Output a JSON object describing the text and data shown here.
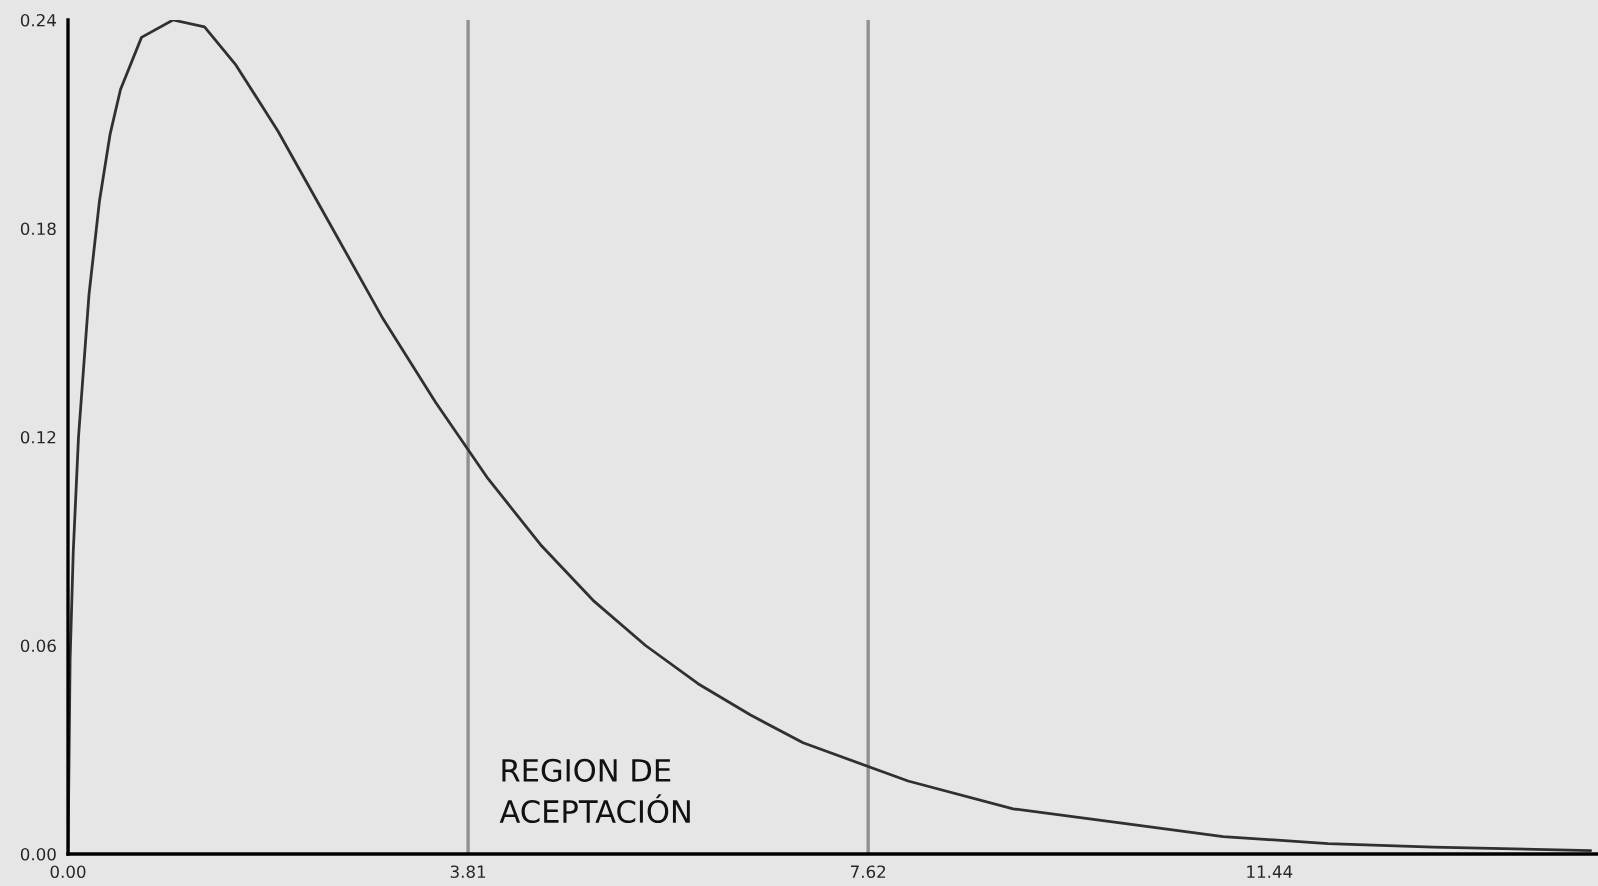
{
  "chart_data": {
    "type": "line",
    "x": [
      0,
      0.02,
      0.05,
      0.1,
      0.2,
      0.3,
      0.4,
      0.5,
      0.7,
      1,
      1.3,
      1.6,
      2,
      2.5,
      3,
      3.5,
      4,
      4.5,
      5,
      5.5,
      6,
      6.5,
      7,
      8,
      9,
      10,
      11,
      12,
      13,
      14.5
    ],
    "series": [
      {
        "color": "#303030",
        "values": [
          0,
          0.056,
          0.087,
          0.12,
          0.161,
          0.188,
          0.207,
          0.22,
          0.235,
          0.24,
          0.238,
          0.227,
          0.208,
          0.181,
          0.154,
          0.13,
          0.108,
          0.089,
          0.073,
          0.06,
          0.049,
          0.04,
          0.032,
          0.021,
          0.013,
          0.009,
          0.005,
          0.003,
          0.002,
          0.001
        ]
      }
    ],
    "xlim": [
      0,
      14.57
    ],
    "ylim": [
      0,
      0.24
    ],
    "xticks": [
      {
        "value": 0,
        "label": "0.00"
      },
      {
        "value": 3.81,
        "label": "3.81"
      },
      {
        "value": 7.62,
        "label": "7.62"
      },
      {
        "value": 11.44,
        "label": "11.44"
      }
    ],
    "yticks": [
      {
        "value": 0,
        "label": "0.00"
      },
      {
        "value": 0.06,
        "label": "0.06"
      },
      {
        "value": 0.12,
        "label": "0.12"
      },
      {
        "value": 0.18,
        "label": "0.18"
      },
      {
        "value": 0.24,
        "label": "0.24"
      }
    ],
    "ref_lines": [
      {
        "axis": "x",
        "value": 3.81,
        "color": "#909090"
      },
      {
        "axis": "x",
        "value": 7.62,
        "color": "#909090"
      }
    ],
    "annotations": [
      "REGION DE\nACEPTACIÓN"
    ],
    "grid": false,
    "legend": false,
    "marker": "none",
    "line_style": "solid"
  }
}
